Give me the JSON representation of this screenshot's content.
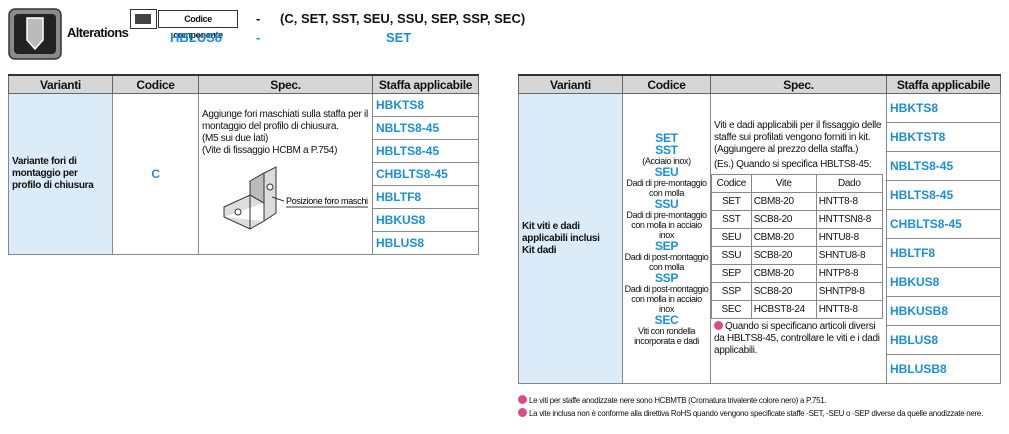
{
  "header": {
    "title": "Alterations",
    "badge": "Codice componente",
    "dash": "-",
    "options": "(C, SET, SST, SEU, SSU, SEP, SSP, SEC)",
    "example_part": "HBLUS8",
    "example_dash": "-",
    "example_code": "SET"
  },
  "table_left": {
    "columns": [
      "Varianti",
      "Codice",
      "Spec.",
      "Staffa applicabile"
    ],
    "variant": "Variante fori di montaggio per profilo di chiusura",
    "code": "C",
    "spec": [
      "Aggiunge fori maschiati sulla staffa per il montaggio del profilo di chiusura.",
      "(M5 sui due lati)",
      "(Vite di fissaggio HCBM a P.754)"
    ],
    "image_label": "Posizione foro maschi",
    "brackets": [
      "HBKTS8",
      "NBLTS8-45",
      "HBLTS8-45",
      "CHBLTS8-45",
      "HBLTF8",
      "HBKUS8",
      "HBLUS8"
    ]
  },
  "table_right": {
    "columns": [
      "Varianti",
      "Codice",
      "Spec.",
      "Staffa applicabile"
    ],
    "variant": [
      "Kit viti e dadi applicabili inclusi",
      "Kit dadi"
    ],
    "codes": [
      {
        "code": "SET"
      },
      {
        "code": "SST",
        "desc": "(Acciaio inox)"
      },
      {
        "code": "SEU",
        "desc": "Dadi di pre-montaggio con molla"
      },
      {
        "code": "SSU",
        "desc": "Dadi di pre-montaggio con molla in acciaio inox"
      },
      {
        "code": "SEP",
        "desc": "Dadi di post-montaggio con molla"
      },
      {
        "code": "SSP",
        "desc": "Dadi di post-montaggio con molla in acciaio inox"
      },
      {
        "code": "SEC",
        "desc": "Viti con rondella incorporata e dadi"
      }
    ],
    "spec": {
      "text": "Viti e dadi applicabili per il fissaggio delle staffe sui profilati vengono forniti in kit. (Aggiungere al prezzo della staffa.)",
      "example": "(Es.) Quando si specifica HBLTS8-45:",
      "columns": [
        "Codice",
        "Vite",
        "Dado"
      ],
      "rows": [
        [
          "SET",
          "CBM8-20",
          "HNTT8-8"
        ],
        [
          "SST",
          "SCB8-20",
          "HNTTSN8-8"
        ],
        [
          "SEU",
          "CBM8-20",
          "HNTU8-8"
        ],
        [
          "SSU",
          "SCB8-20",
          "SHNTU8-8"
        ],
        [
          "SEP",
          "CBM8-20",
          "HNTP8-8"
        ],
        [
          "SSP",
          "SCB8-20",
          "SHNTP8-8"
        ],
        [
          "SEC",
          "HCBST8-24",
          "HNTT8-8"
        ]
      ],
      "note": "Quando si specificano articoli diversi da HBLTS8-45, controllare le viti e i dadi applicabili."
    },
    "brackets": [
      "HBKTS8",
      "HBKTST8",
      "NBLTS8-45",
      "HBLTS8-45",
      "CHBLTS8-45",
      "HBLTF8",
      "HBKUS8",
      "HBKUSB8",
      "HBLUS8",
      "HBLUSB8"
    ]
  },
  "footnotes": [
    "Le viti per staffe anodizzate nere sono HCBMTB (Cromatura trivalente colore nero) a P.751.",
    "La vite inclusa non è conforme alla direttiva RoHS quando vengono specificate staffe -SET, -SEU o -SEP diverse da quelle anodizzate nere."
  ]
}
